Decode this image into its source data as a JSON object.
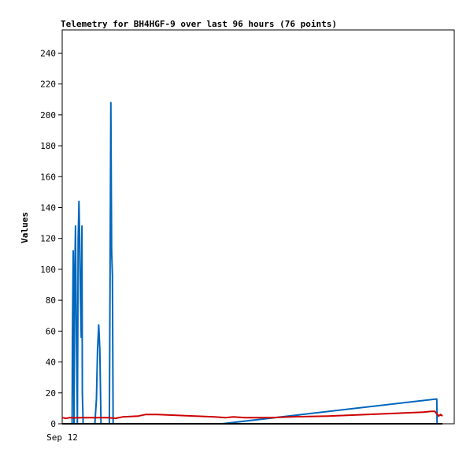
{
  "chart_data": {
    "type": "line",
    "title": "Telemetry for BH4HGF-9 over last 96 hours (76 points)",
    "xlabel": "",
    "ylabel": "Values",
    "x_ticks": [
      "Sep 12"
    ],
    "y_ticks": [
      0,
      20,
      40,
      60,
      80,
      100,
      120,
      140,
      160,
      180,
      200,
      220,
      240
    ],
    "ylim": [
      0,
      255
    ],
    "xlim": [
      0,
      100
    ],
    "grid": false,
    "legend": "none",
    "series": [
      {
        "color": "#0066bb",
        "points": [
          [
            0,
            0
          ],
          [
            2.6,
            0
          ],
          [
            2.7,
            56
          ],
          [
            2.9,
            112
          ],
          [
            3.1,
            0
          ],
          [
            3.3,
            96
          ],
          [
            3.5,
            128
          ],
          [
            3.7,
            64
          ],
          [
            4.0,
            0
          ],
          [
            4.2,
            120
          ],
          [
            4.4,
            144
          ],
          [
            4.6,
            120
          ],
          [
            4.8,
            80
          ],
          [
            5.0,
            56
          ],
          [
            5.2,
            128
          ],
          [
            5.3,
            20
          ],
          [
            5.5,
            0
          ],
          [
            8.6,
            0
          ],
          [
            9.0,
            16
          ],
          [
            9.3,
            48
          ],
          [
            9.6,
            64
          ],
          [
            9.9,
            48
          ],
          [
            10.2,
            0
          ],
          [
            12.4,
            0
          ],
          [
            12.6,
            104
          ],
          [
            12.8,
            208
          ],
          [
            13.0,
            112
          ],
          [
            13.2,
            96
          ],
          [
            13.4,
            0
          ],
          [
            42,
            0
          ],
          [
            98.3,
            16
          ],
          [
            98.5,
            16
          ],
          [
            98.6,
            0
          ],
          [
            100,
            0
          ]
        ]
      },
      {
        "color": "#cc0000",
        "points": [
          [
            0,
            4
          ],
          [
            1,
            3.5
          ],
          [
            2,
            4
          ],
          [
            3,
            3.8
          ],
          [
            5,
            4
          ],
          [
            8,
            4
          ],
          [
            12,
            4
          ],
          [
            14,
            3.5
          ],
          [
            16,
            4.5
          ],
          [
            20,
            5
          ],
          [
            22,
            6
          ],
          [
            25,
            6
          ],
          [
            30,
            5.5
          ],
          [
            35,
            5
          ],
          [
            40,
            4.5
          ],
          [
            43,
            4
          ],
          [
            45,
            4.5
          ],
          [
            48,
            4
          ],
          [
            55,
            4
          ],
          [
            60,
            4.5
          ],
          [
            70,
            5
          ],
          [
            80,
            6
          ],
          [
            90,
            7
          ],
          [
            95,
            7.5
          ],
          [
            97,
            8
          ],
          [
            98,
            8
          ],
          [
            99,
            5
          ],
          [
            99.5,
            6
          ],
          [
            100,
            5
          ]
        ]
      }
    ]
  }
}
